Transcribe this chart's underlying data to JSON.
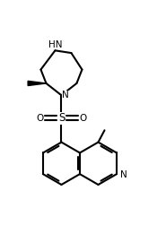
{
  "bg": "#ffffff",
  "lc": "#000000",
  "lw": 1.5,
  "fs": 7.5,
  "figsize": [
    1.85,
    2.61
  ],
  "dpi": 100,
  "xlim": [
    -0.5,
    9.5
  ],
  "ylim": [
    -0.5,
    13.5
  ]
}
